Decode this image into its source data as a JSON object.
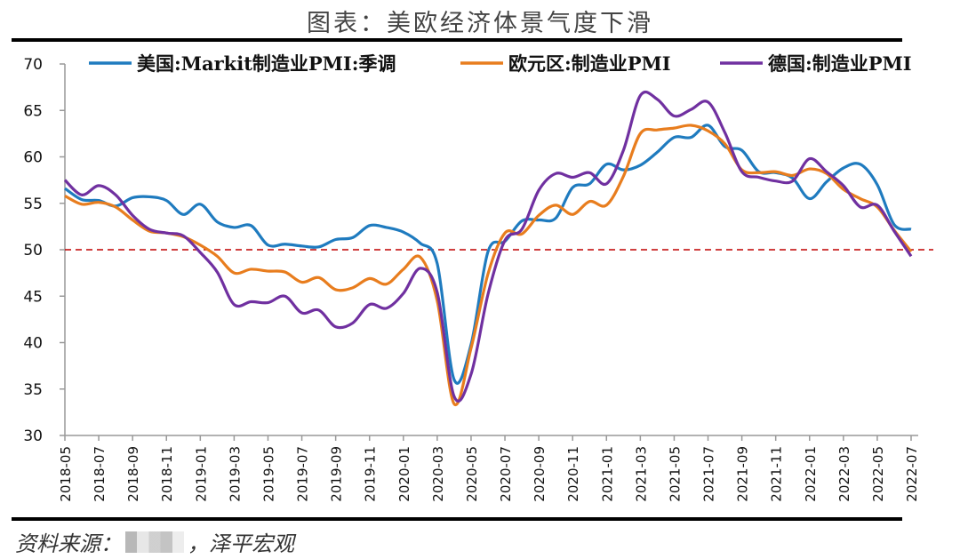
{
  "title": "图表：美欧经济体景气度下滑",
  "source": {
    "prefix": "资料来源：",
    "suffix": "，泽平宏观"
  },
  "chart_data": {
    "type": "line",
    "title": "图表：美欧经济体景气度下滑",
    "xlabel": "",
    "ylabel": "",
    "ylim": [
      30,
      70
    ],
    "yticks": [
      30,
      35,
      40,
      45,
      50,
      55,
      60,
      65,
      70
    ],
    "legend_position": "top",
    "reference_line": {
      "value": 50,
      "color": "#c00000",
      "style": "dashed"
    },
    "x": [
      "2018-05",
      "2018-06",
      "2018-07",
      "2018-08",
      "2018-09",
      "2018-10",
      "2018-11",
      "2018-12",
      "2019-01",
      "2019-02",
      "2019-03",
      "2019-04",
      "2019-05",
      "2019-06",
      "2019-07",
      "2019-08",
      "2019-09",
      "2019-10",
      "2019-11",
      "2019-12",
      "2020-01",
      "2020-02",
      "2020-03",
      "2020-04",
      "2020-05",
      "2020-06",
      "2020-07",
      "2020-08",
      "2020-09",
      "2020-10",
      "2020-11",
      "2020-12",
      "2021-01",
      "2021-02",
      "2021-03",
      "2021-04",
      "2021-05",
      "2021-06",
      "2021-07",
      "2021-08",
      "2021-09",
      "2021-10",
      "2021-11",
      "2021-12",
      "2022-01",
      "2022-02",
      "2022-03",
      "2022-04",
      "2022-05",
      "2022-06",
      "2022-07"
    ],
    "xtick_labels": [
      "2018-05",
      "2018-07",
      "2018-09",
      "2018-11",
      "2019-01",
      "2019-03",
      "2019-05",
      "2019-07",
      "2019-09",
      "2019-11",
      "2020-01",
      "2020-03",
      "2020-05",
      "2020-07",
      "2020-09",
      "2020-11",
      "2021-01",
      "2021-03",
      "2021-05",
      "2021-07",
      "2021-09",
      "2021-11",
      "2022-01",
      "2022-03",
      "2022-05",
      "2022-07"
    ],
    "series": [
      {
        "name": "美国:Markit制造业PMI:季调",
        "color": "#1f7bbf",
        "values": [
          56.6,
          55.4,
          55.3,
          54.7,
          55.6,
          55.7,
          55.3,
          53.8,
          54.9,
          53.0,
          52.4,
          52.6,
          50.5,
          50.6,
          50.4,
          50.3,
          51.1,
          51.3,
          52.6,
          52.4,
          51.9,
          50.7,
          48.5,
          36.0,
          39.8,
          49.8,
          50.9,
          53.1,
          53.2,
          53.4,
          56.7,
          57.1,
          59.2,
          58.6,
          59.1,
          60.5,
          62.1,
          62.1,
          63.4,
          61.1,
          60.7,
          58.4,
          58.3,
          57.7,
          55.5,
          57.3,
          58.8,
          59.2,
          57.0,
          52.7,
          52.2
        ]
      },
      {
        "name": "欧元区:制造业PMI",
        "color": "#e87d1e",
        "values": [
          55.8,
          54.9,
          55.1,
          54.6,
          53.2,
          52.0,
          51.8,
          51.4,
          50.5,
          49.3,
          47.5,
          47.9,
          47.7,
          47.6,
          46.5,
          47.0,
          45.7,
          45.9,
          46.9,
          46.3,
          47.9,
          49.2,
          44.5,
          33.4,
          39.4,
          47.4,
          51.8,
          51.7,
          53.7,
          54.8,
          53.8,
          55.2,
          54.8,
          57.9,
          62.5,
          62.9,
          63.1,
          63.4,
          62.8,
          61.4,
          58.6,
          58.3,
          58.4,
          58.0,
          58.7,
          58.2,
          56.5,
          55.5,
          54.6,
          52.1,
          49.8
        ]
      },
      {
        "name": "德国:制造业PMI",
        "color": "#7030a0",
        "values": [
          57.5,
          55.9,
          56.9,
          55.9,
          53.7,
          52.2,
          51.8,
          51.5,
          49.7,
          47.6,
          44.1,
          44.4,
          44.3,
          45.0,
          43.2,
          43.5,
          41.7,
          42.1,
          44.1,
          43.7,
          45.3,
          48.0,
          45.4,
          34.2,
          36.6,
          45.2,
          51.0,
          52.2,
          56.4,
          58.2,
          57.8,
          58.3,
          57.1,
          60.7,
          66.6,
          66.2,
          64.4,
          65.1,
          65.9,
          62.6,
          58.4,
          57.8,
          57.4,
          57.4,
          59.8,
          58.4,
          56.9,
          54.6,
          54.8,
          52.0,
          49.3
        ]
      }
    ]
  }
}
